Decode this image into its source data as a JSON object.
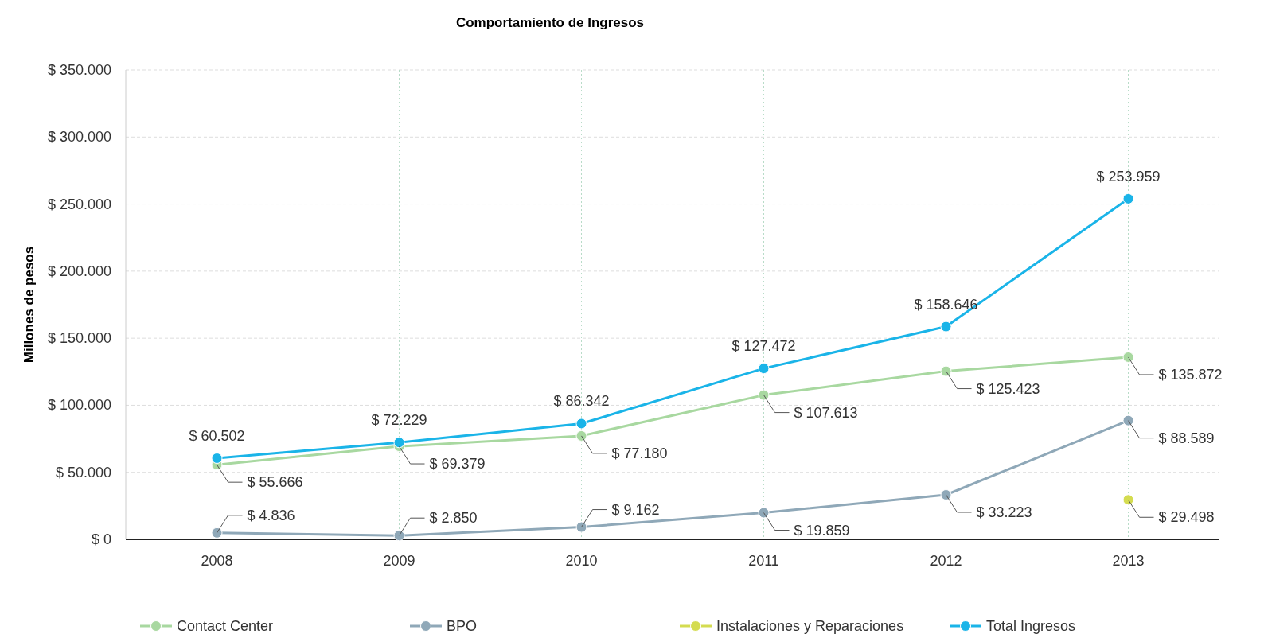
{
  "chart_data": {
    "type": "line",
    "title": "Comportamiento de Ingresos",
    "ylabel": "Millones de pesos",
    "categories": [
      "2008",
      "2009",
      "2010",
      "2011",
      "2012",
      "2013"
    ],
    "ylim": [
      0,
      350000
    ],
    "yticks": [
      {
        "value": 0,
        "label": "$ 0"
      },
      {
        "value": 50000,
        "label": "$ 50.000"
      },
      {
        "value": 100000,
        "label": "$ 100.000"
      },
      {
        "value": 150000,
        "label": "$ 150.000"
      },
      {
        "value": 200000,
        "label": "$ 200.000"
      },
      {
        "value": 250000,
        "label": "$ 250.000"
      },
      {
        "value": 300000,
        "label": "$ 300.000"
      },
      {
        "value": 350000,
        "label": "$ 350.000"
      }
    ],
    "grid": true,
    "legend": "bottom",
    "marker": "circle",
    "line_style": "solid",
    "series": [
      {
        "name": "Contact Center",
        "color": "#a8d8a0",
        "values": [
          55666,
          69379,
          77180,
          107613,
          125423,
          135872
        ],
        "value_labels": [
          "$ 55.666",
          "$ 69.379",
          "$ 77.180",
          "$ 107.613",
          "$ 125.423",
          "$ 135.872"
        ]
      },
      {
        "name": "BPO",
        "color": "#8fa8b8",
        "values": [
          4836,
          2850,
          9162,
          19859,
          33223,
          88589
        ],
        "value_labels": [
          "$ 4.836",
          "$ 2.850",
          "$ 9.162",
          "$ 19.859",
          "$ 33.223",
          "$ 88.589"
        ]
      },
      {
        "name": "Instalaciones y Reparaciones",
        "color": "#d4dc50",
        "values": [
          null,
          null,
          null,
          null,
          null,
          29498
        ],
        "value_labels": [
          null,
          null,
          null,
          null,
          null,
          "$ 29.498"
        ]
      },
      {
        "name": "Total Ingresos",
        "color": "#1ab4e8",
        "values": [
          60502,
          72229,
          86342,
          127472,
          158646,
          253959
        ],
        "value_labels": [
          "$ 60.502",
          "$ 72.229",
          "$ 86.342",
          "$ 127.472",
          "$ 158.646",
          "$ 253.959"
        ]
      }
    ]
  }
}
